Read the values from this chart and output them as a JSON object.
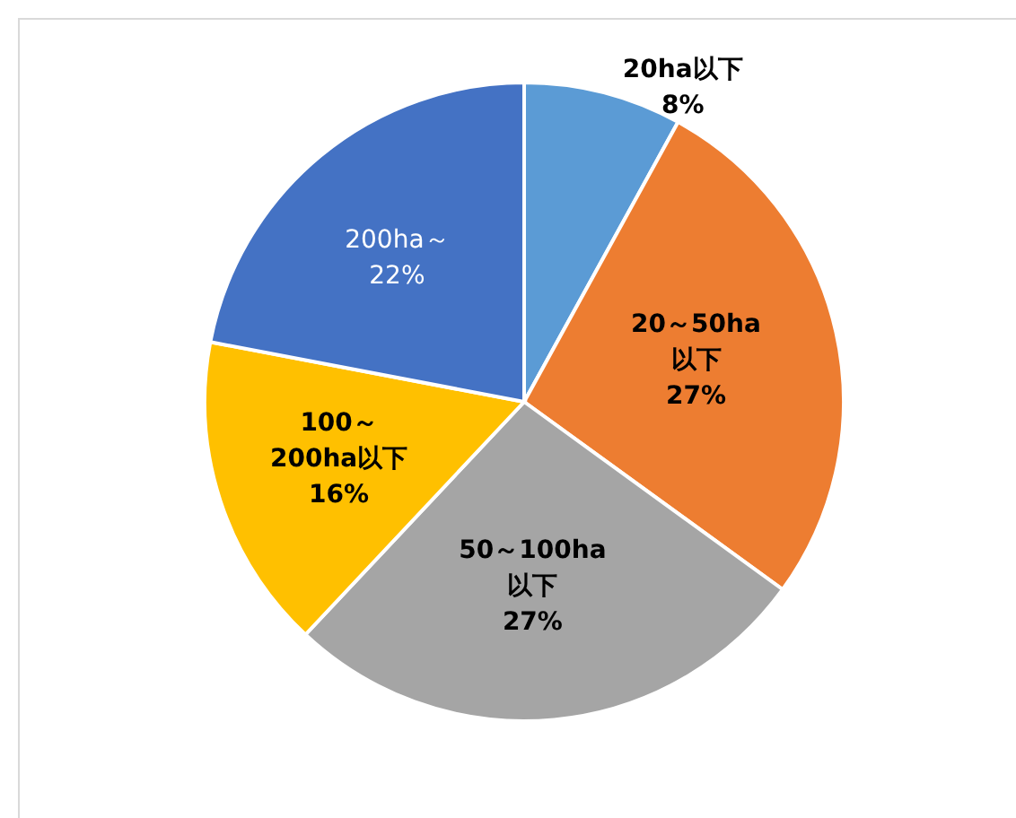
{
  "chart_data": {
    "type": "pie",
    "categories": [
      "20ha以下",
      "20～50ha以下",
      "50～100ha以下",
      "100～200ha以下",
      "200ha～"
    ],
    "values": [
      8,
      27,
      27,
      16,
      22
    ],
    "value_labels": [
      "8%",
      "27%",
      "27%",
      "16%",
      "22%"
    ],
    "colors": [
      "#5b9bd5",
      "#ed7d31",
      "#a5a5a5",
      "#ffc000",
      "#4472c4"
    ]
  }
}
